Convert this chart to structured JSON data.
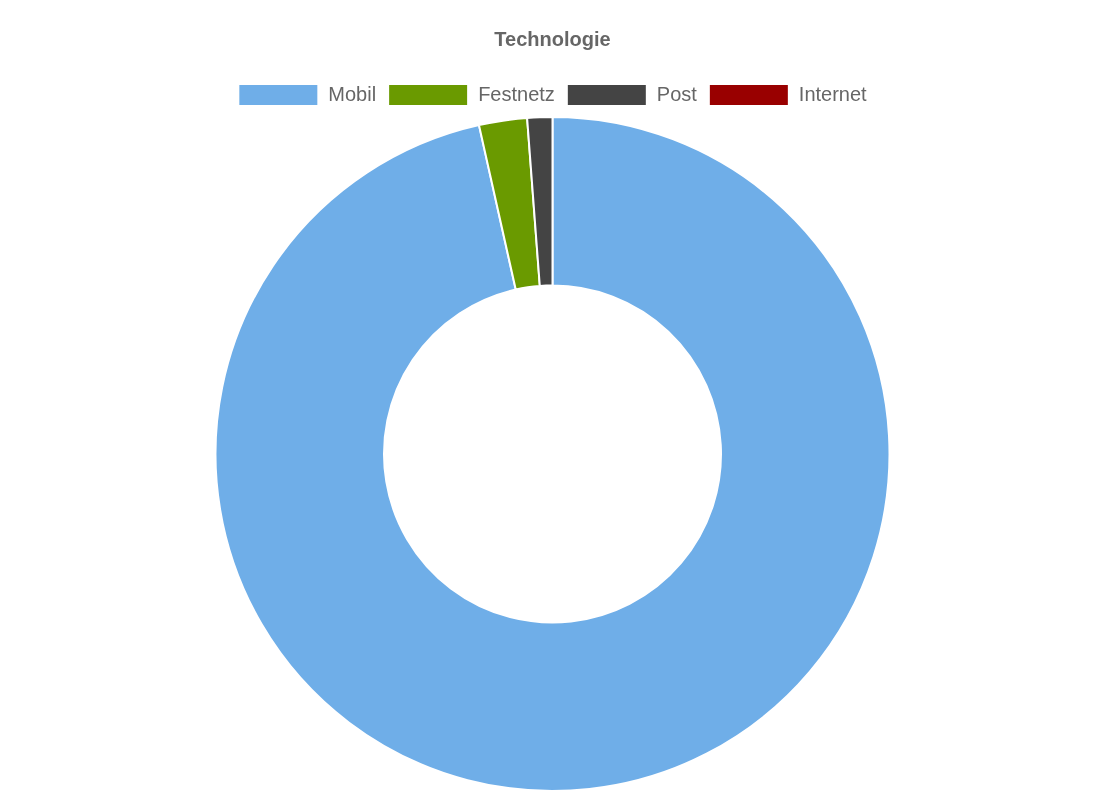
{
  "chart_data": {
    "type": "donut",
    "title": "Technologie",
    "categories": [
      "Mobil",
      "Festnetz",
      "Post",
      "Internet"
    ],
    "values": [
      96.5,
      2.3,
      1.2,
      0
    ],
    "colors": [
      "#6faee8",
      "#6a9a00",
      "#444444",
      "#990000"
    ],
    "legend": "top"
  }
}
